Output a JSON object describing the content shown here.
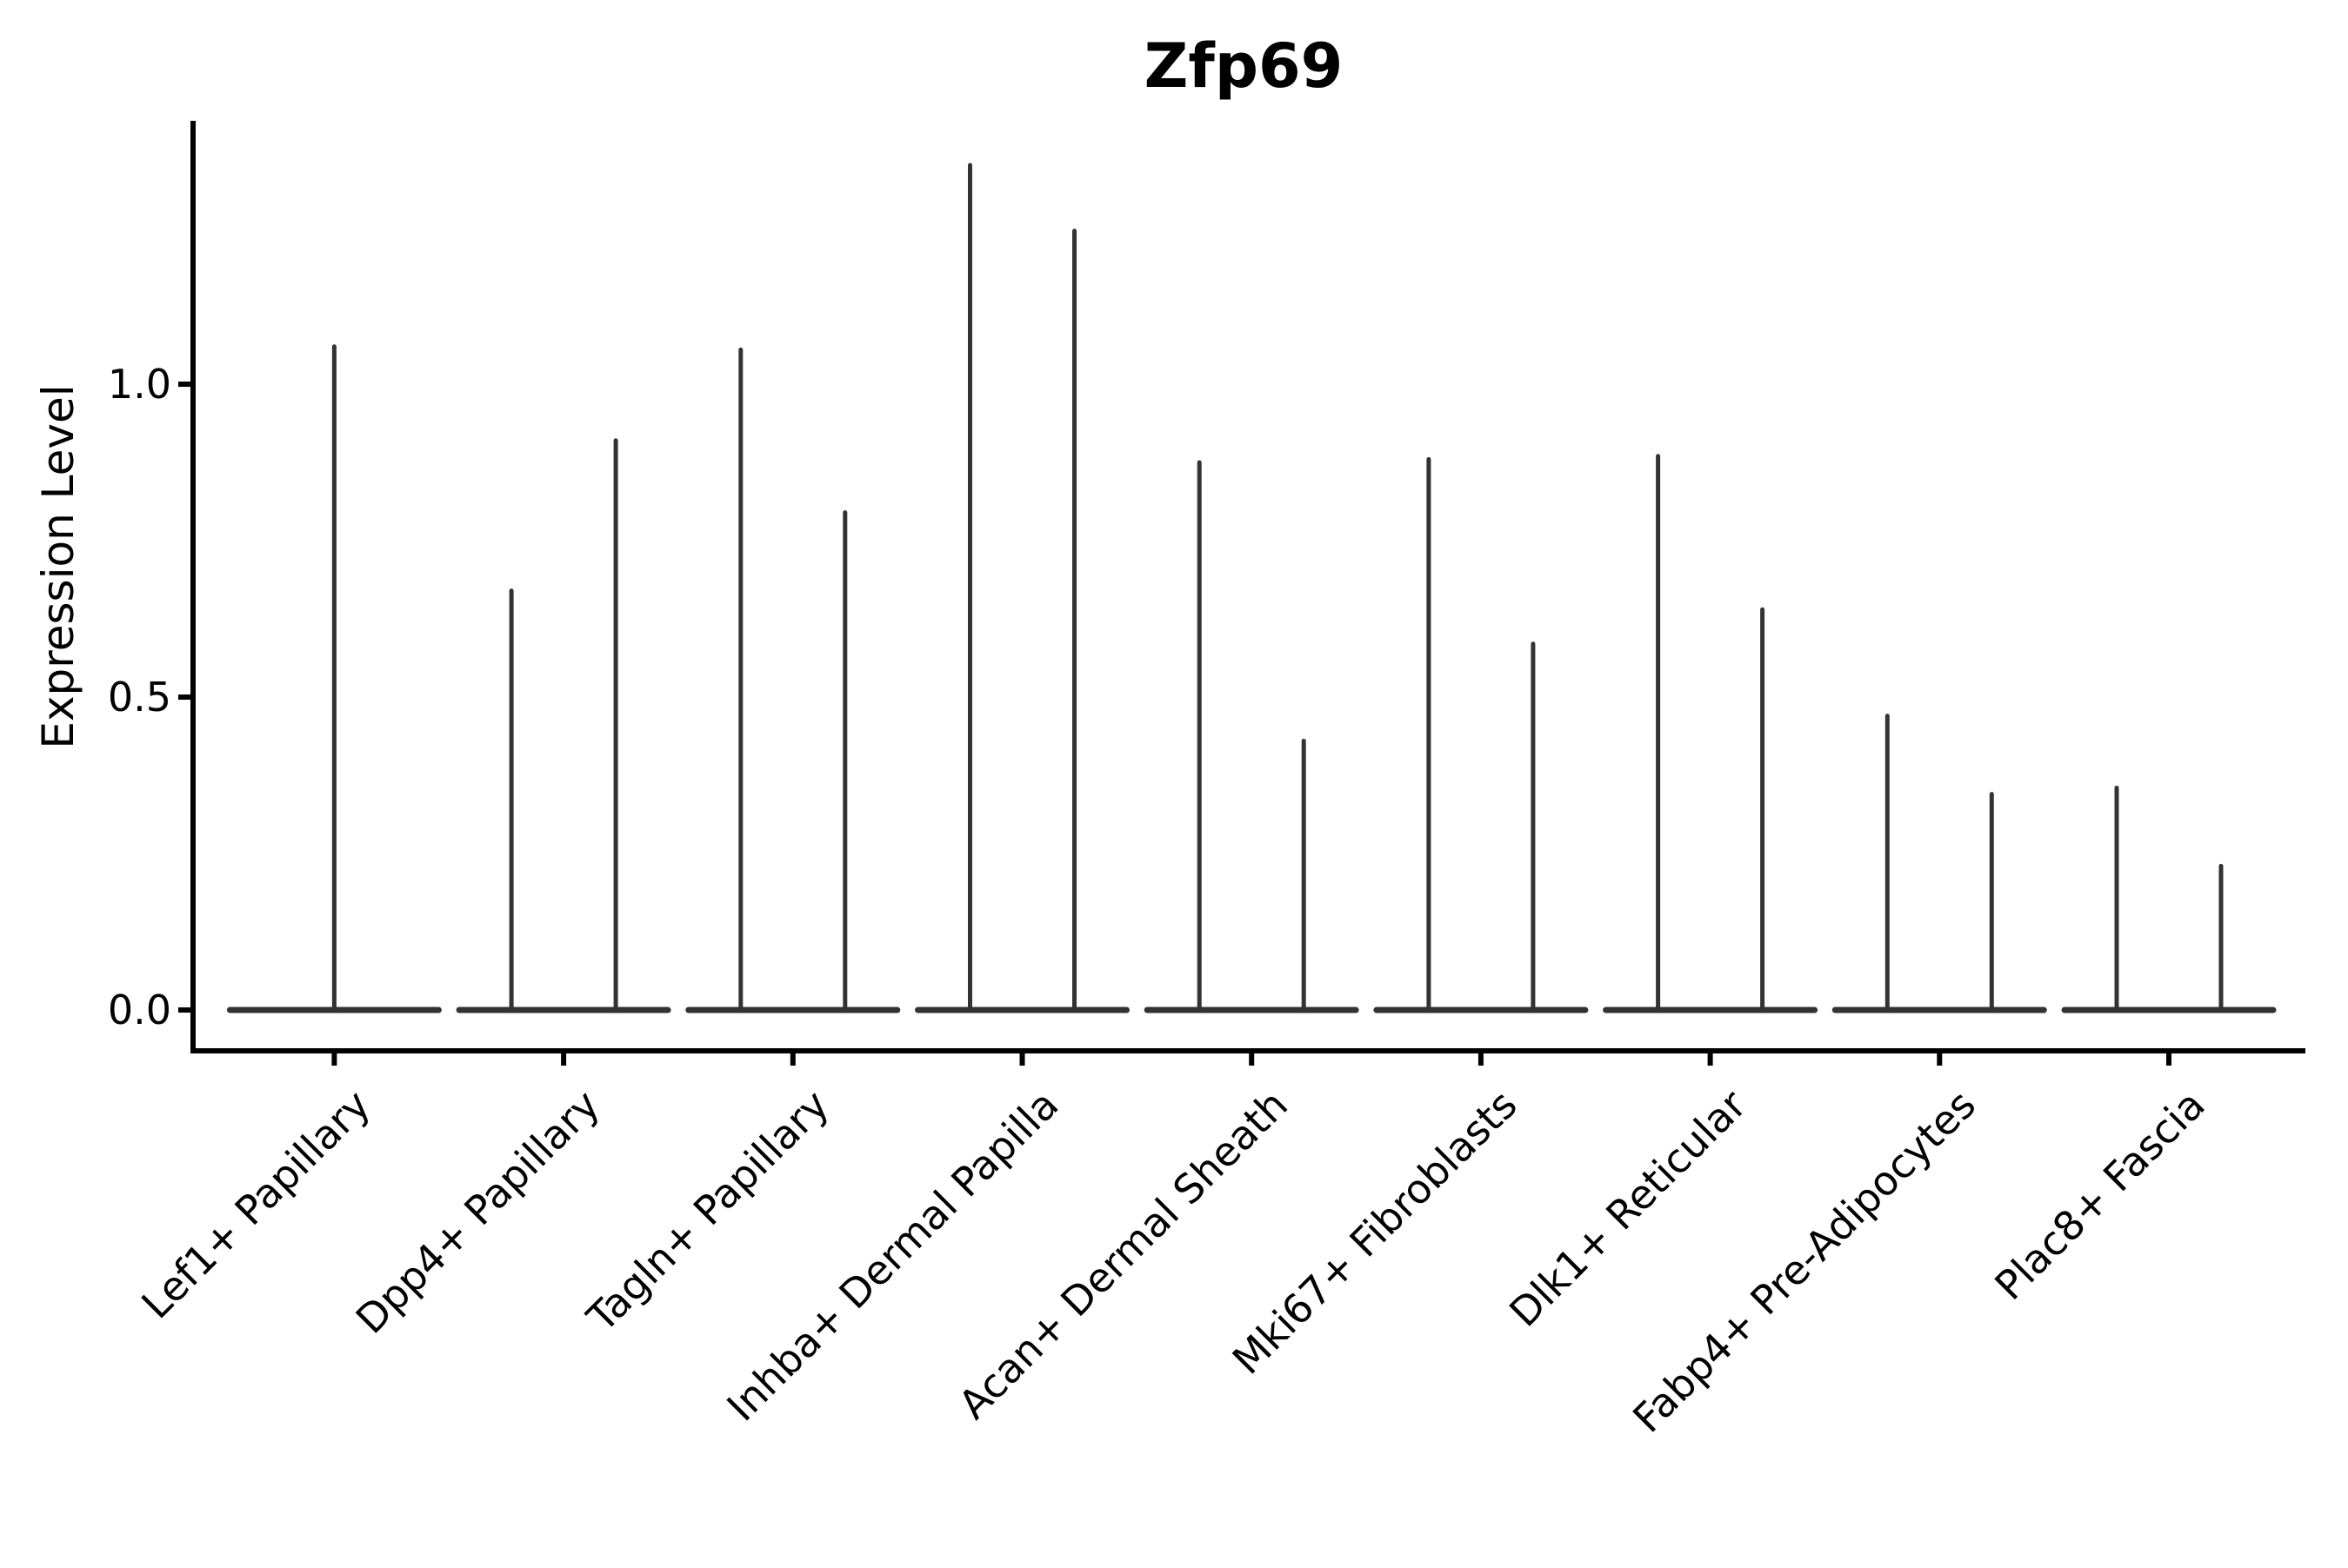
{
  "chart_data": {
    "type": "violin",
    "title": "Zfp69",
    "ylabel": "Expression Level",
    "xlabel": "",
    "grid": false,
    "legend": "none",
    "background": "#ffffff",
    "violin_color": "#333333",
    "axis_color": "#000000",
    "text_color": "#000000",
    "ylim": [
      -0.07,
      1.42
    ],
    "yticks": [
      0.0,
      0.5,
      1.0
    ],
    "ytick_labels": [
      "0.0",
      "0.5",
      "1.0"
    ],
    "x_tick_rotation_deg": 45,
    "categories": [
      "Lef1+ Papillary",
      "Dpp4+ Papillary",
      "Tagln+ Papillary",
      "Inhba+ Dermal Papilla",
      "Acan+ Dermal Sheath",
      "Mki67+ Fibroblasts",
      "Dlk1+ Reticular",
      "Fabp4+ Pre-Adipocytes",
      "Plac8+ Fascia"
    ],
    "violins": [
      {
        "category": "Lef1+ Papillary",
        "spikes": [
          {
            "offset": 0,
            "max": 1.06
          }
        ]
      },
      {
        "category": "Dpp4+ Papillary",
        "spikes": [
          {
            "offset": -60,
            "max": 0.67
          },
          {
            "offset": 60,
            "max": 0.91
          }
        ]
      },
      {
        "category": "Tagln+ Papillary",
        "spikes": [
          {
            "offset": -60,
            "max": 1.055
          },
          {
            "offset": 60,
            "max": 0.795
          }
        ]
      },
      {
        "category": "Inhba+ Dermal Papilla",
        "spikes": [
          {
            "offset": -60,
            "max": 1.35
          },
          {
            "offset": 60,
            "max": 1.245
          }
        ]
      },
      {
        "category": "Acan+ Dermal Sheath",
        "spikes": [
          {
            "offset": -60,
            "max": 0.875
          },
          {
            "offset": 60,
            "max": 0.43
          }
        ]
      },
      {
        "category": "Mki67+ Fibroblasts",
        "spikes": [
          {
            "offset": -60,
            "max": 0.88
          },
          {
            "offset": 60,
            "max": 0.585
          }
        ]
      },
      {
        "category": "Dlk1+ Reticular",
        "spikes": [
          {
            "offset": -60,
            "max": 0.885
          },
          {
            "offset": 60,
            "max": 0.64
          }
        ]
      },
      {
        "category": "Fabp4+ Pre-Adipocytes",
        "spikes": [
          {
            "offset": -60,
            "max": 0.47
          },
          {
            "offset": 60,
            "max": 0.345
          }
        ]
      },
      {
        "category": "Plac8+ Fascia",
        "spikes": [
          {
            "offset": -60,
            "max": 0.355
          },
          {
            "offset": 60,
            "max": 0.23
          }
        ]
      }
    ]
  }
}
